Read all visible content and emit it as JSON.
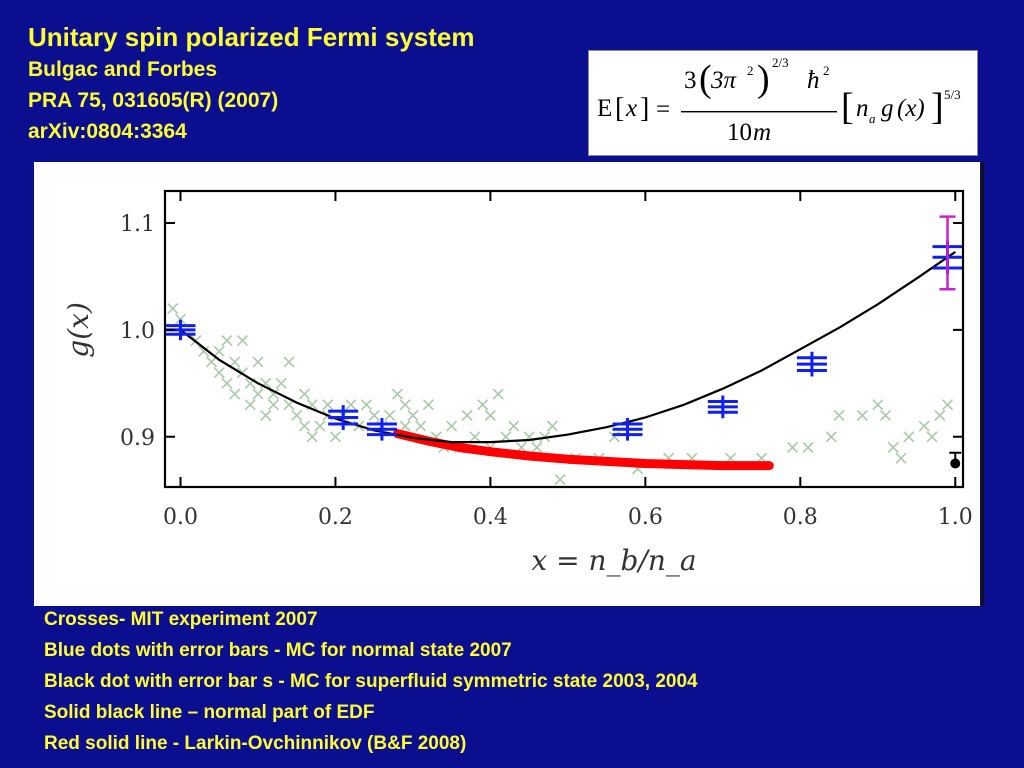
{
  "slide": {
    "title": "Unitary spin polarized Fermi system",
    "authors": "Bulgac and Forbes",
    "reference": "PRA 75, 031605(R) (2007)",
    "arxiv": "arXiv:0804:3364"
  },
  "formula": {
    "lhs_E": "E",
    "lhs_lbr": "[",
    "lhs_x": "x",
    "lhs_rbr": "]",
    "equals": "=",
    "num_3": "3",
    "num_lparen": "(",
    "num_3pi": "3π",
    "num_sq": "2",
    "num_rparen": ")",
    "num_exp": "2/3",
    "num_hbar": "ħ",
    "num_hbar_sq": "2",
    "den_10": "10",
    "den_m": "m",
    "br_left": "[",
    "br_n": "n",
    "br_a": "a",
    "br_g": "g",
    "br_x": "(x)",
    "br_right": "]",
    "br_exp": "5/3"
  },
  "legend": [
    "Crosses-  MIT experiment 2007",
    "Blue dots with error bars  - MC  for normal state 2007",
    "Black dot with error bar s - MC for superfluid symmetric state 2003, 2004",
    "Solid black line – normal part of EDF",
    "Red solid line  - Larkin-Ovchinnikov   (B&F 2008)"
  ],
  "colors": {
    "background": "#0b0e8f",
    "text": "#ffff33",
    "crosses": "#a9c9a9",
    "mc_normal": "#1020f0",
    "normal_edf": "#000000",
    "larkin_ovchinnikov": "#ff0000",
    "magenta_errorbar": "#cc22cc"
  },
  "chart_data": {
    "type": "scatter",
    "xlabel": "x = n_b/n_a",
    "ylabel": "g(x)",
    "xlim": [
      -0.02,
      1.01
    ],
    "ylim": [
      0.853,
      1.13
    ],
    "x_ticks": [
      "0.0",
      "0.2",
      "0.4",
      "0.6",
      "0.8",
      "1.0"
    ],
    "y_ticks": [
      "0.9",
      "1.0",
      "1.1"
    ],
    "grid": false,
    "series": [
      {
        "name": "Crosses- MIT experiment 2007",
        "kind": "cross",
        "points": [
          [
            -0.01,
            1.02
          ],
          [
            0.0,
            1.01
          ],
          [
            0.02,
            0.99
          ],
          [
            0.03,
            0.98
          ],
          [
            0.04,
            0.97
          ],
          [
            0.05,
            0.98
          ],
          [
            0.05,
            0.96
          ],
          [
            0.06,
            0.95
          ],
          [
            0.06,
            0.99
          ],
          [
            0.07,
            0.97
          ],
          [
            0.07,
            0.94
          ],
          [
            0.08,
            0.99
          ],
          [
            0.08,
            0.96
          ],
          [
            0.09,
            0.93
          ],
          [
            0.09,
            0.95
          ],
          [
            0.1,
            0.97
          ],
          [
            0.1,
            0.94
          ],
          [
            0.11,
            0.92
          ],
          [
            0.11,
            0.95
          ],
          [
            0.12,
            0.94
          ],
          [
            0.12,
            0.93
          ],
          [
            0.13,
            0.95
          ],
          [
            0.14,
            0.97
          ],
          [
            0.14,
            0.93
          ],
          [
            0.15,
            0.92
          ],
          [
            0.16,
            0.94
          ],
          [
            0.16,
            0.91
          ],
          [
            0.17,
            0.93
          ],
          [
            0.17,
            0.9
          ],
          [
            0.18,
            0.91
          ],
          [
            0.19,
            0.93
          ],
          [
            0.19,
            0.92
          ],
          [
            0.2,
            0.9
          ],
          [
            0.21,
            0.92
          ],
          [
            0.22,
            0.93
          ],
          [
            0.23,
            0.91
          ],
          [
            0.24,
            0.93
          ],
          [
            0.25,
            0.92
          ],
          [
            0.26,
            0.91
          ],
          [
            0.27,
            0.92
          ],
          [
            0.28,
            0.94
          ],
          [
            0.29,
            0.93
          ],
          [
            0.29,
            0.91
          ],
          [
            0.3,
            0.92
          ],
          [
            0.31,
            0.91
          ],
          [
            0.32,
            0.93
          ],
          [
            0.33,
            0.9
          ],
          [
            0.34,
            0.89
          ],
          [
            0.35,
            0.91
          ],
          [
            0.36,
            0.89
          ],
          [
            0.37,
            0.92
          ],
          [
            0.38,
            0.9
          ],
          [
            0.39,
            0.93
          ],
          [
            0.4,
            0.89
          ],
          [
            0.4,
            0.92
          ],
          [
            0.41,
            0.94
          ],
          [
            0.42,
            0.9
          ],
          [
            0.43,
            0.91
          ],
          [
            0.44,
            0.89
          ],
          [
            0.45,
            0.9
          ],
          [
            0.46,
            0.89
          ],
          [
            0.47,
            0.9
          ],
          [
            0.48,
            0.91
          ],
          [
            0.49,
            0.86
          ],
          [
            0.51,
            0.88
          ],
          [
            0.54,
            0.88
          ],
          [
            0.56,
            0.9
          ],
          [
            0.59,
            0.87
          ],
          [
            0.63,
            0.88
          ],
          [
            0.66,
            0.88
          ],
          [
            0.71,
            0.88
          ],
          [
            0.75,
            0.88
          ],
          [
            0.79,
            0.89
          ],
          [
            0.81,
            0.89
          ],
          [
            0.84,
            0.9
          ],
          [
            0.85,
            0.92
          ],
          [
            0.88,
            0.92
          ],
          [
            0.9,
            0.93
          ],
          [
            0.91,
            0.92
          ],
          [
            0.92,
            0.89
          ],
          [
            0.93,
            0.88
          ],
          [
            0.94,
            0.9
          ],
          [
            0.96,
            0.91
          ],
          [
            0.97,
            0.9
          ],
          [
            0.98,
            0.92
          ],
          [
            0.99,
            0.93
          ]
        ]
      },
      {
        "name": "Blue dots with error bars - MC for normal state 2007",
        "kind": "errorbar",
        "points": [
          [
            0.0,
            1.0,
            0.004
          ],
          [
            0.21,
            0.918,
            0.006
          ],
          [
            0.26,
            0.907,
            0.005
          ],
          [
            0.577,
            0.907,
            0.005
          ],
          [
            0.7,
            0.928,
            0.005
          ],
          [
            0.815,
            0.968,
            0.006
          ],
          [
            0.99,
            1.068,
            0.01
          ]
        ]
      },
      {
        "name": "Black dot with error bar s - MC for superfluid symmetric state 2003, 2004",
        "kind": "point",
        "points": [
          [
            1.0,
            0.875,
            0.01
          ]
        ]
      },
      {
        "name": "Magenta error bar at x = 1",
        "kind": "range",
        "points": [
          [
            0.99,
            1.072,
            0.034
          ]
        ]
      },
      {
        "name": "Solid black line – normal part of EDF",
        "kind": "line",
        "points": [
          [
            0.0,
            1.0
          ],
          [
            0.05,
            0.972
          ],
          [
            0.1,
            0.95
          ],
          [
            0.15,
            0.932
          ],
          [
            0.2,
            0.917
          ],
          [
            0.25,
            0.906
          ],
          [
            0.3,
            0.899
          ],
          [
            0.35,
            0.895
          ],
          [
            0.4,
            0.895
          ],
          [
            0.45,
            0.897
          ],
          [
            0.5,
            0.902
          ],
          [
            0.55,
            0.909
          ],
          [
            0.6,
            0.918
          ],
          [
            0.65,
            0.93
          ],
          [
            0.7,
            0.945
          ],
          [
            0.75,
            0.962
          ],
          [
            0.8,
            0.982
          ],
          [
            0.85,
            1.002
          ],
          [
            0.9,
            1.024
          ],
          [
            0.95,
            1.048
          ],
          [
            1.0,
            1.073
          ]
        ]
      },
      {
        "name": "Red solid line - Larkin-Ovchinnikov (B&F 2008)",
        "kind": "thick-line",
        "points": [
          [
            0.28,
            0.903
          ],
          [
            0.32,
            0.896
          ],
          [
            0.36,
            0.89
          ],
          [
            0.4,
            0.886
          ],
          [
            0.45,
            0.882
          ],
          [
            0.5,
            0.879
          ],
          [
            0.55,
            0.877
          ],
          [
            0.6,
            0.875
          ],
          [
            0.65,
            0.874
          ],
          [
            0.7,
            0.873
          ],
          [
            0.76,
            0.873
          ]
        ]
      }
    ]
  }
}
